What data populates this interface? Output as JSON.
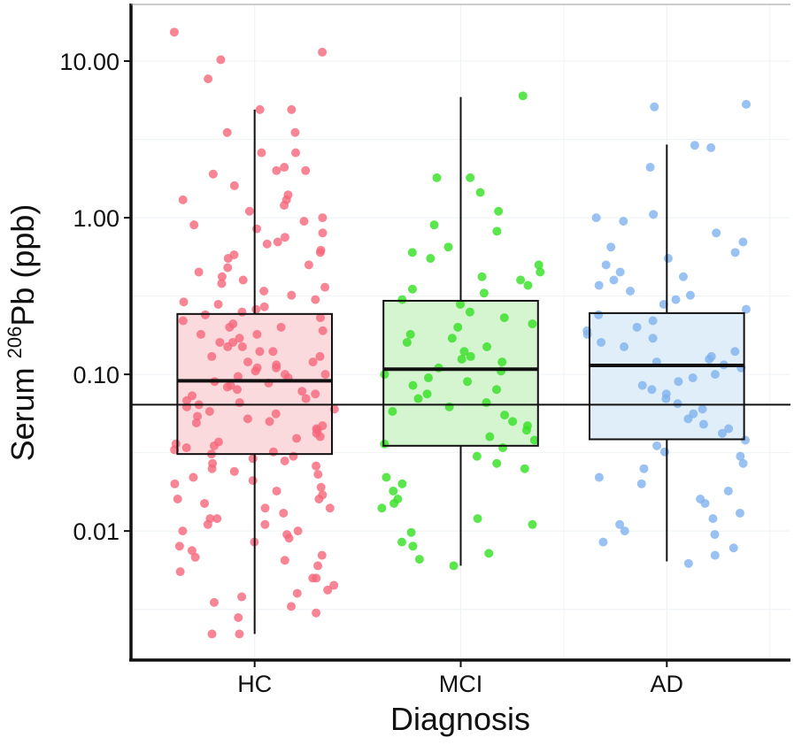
{
  "chart_data": {
    "type": "box",
    "xlabel": "Diagnosis",
    "ylabel_main": "Serum ",
    "ylabel_sup": "206",
    "ylabel_rest": "Pb (ppb)",
    "yscale": "log10",
    "ylim": [
      0.0015,
      23
    ],
    "yticks": [
      10,
      1,
      0.1,
      0.01
    ],
    "ytick_labels": [
      "10.00",
      "1.00",
      "0.10",
      "0.01"
    ],
    "categories": [
      "HC",
      "MCI",
      "AD"
    ],
    "grid": true,
    "reference_line": 0.064,
    "groups": [
      {
        "name": "HC",
        "color": "#f6667a",
        "fill": "#fadadd",
        "box": {
          "whisker_low": 0.0022,
          "q1": 0.031,
          "median": 0.091,
          "q3": 0.243,
          "whisker_high": 4.9
        },
        "points": [
          15.3,
          11.4,
          10.2,
          7.7,
          4.9,
          4.9,
          3.5,
          3.5,
          2.6,
          2.6,
          2.1,
          2.0,
          2.0,
          1.9,
          1.6,
          1.4,
          1.3,
          1.3,
          1.2,
          1.1,
          1.0,
          0.95,
          0.9,
          0.85,
          0.8,
          0.75,
          0.7,
          0.68,
          0.62,
          0.6,
          0.58,
          0.55,
          0.5,
          0.48,
          0.45,
          0.42,
          0.4,
          0.38,
          0.36,
          0.34,
          0.32,
          0.3,
          0.29,
          0.28,
          0.27,
          0.26,
          0.25,
          0.24,
          0.23,
          0.22,
          0.21,
          0.2,
          0.2,
          0.19,
          0.18,
          0.18,
          0.17,
          0.16,
          0.16,
          0.15,
          0.15,
          0.14,
          0.14,
          0.13,
          0.13,
          0.12,
          0.12,
          0.115,
          0.11,
          0.11,
          0.105,
          0.1,
          0.1,
          0.097,
          0.095,
          0.09,
          0.088,
          0.085,
          0.083,
          0.08,
          0.078,
          0.075,
          0.073,
          0.07,
          0.068,
          0.066,
          0.064,
          0.062,
          0.06,
          0.058,
          0.056,
          0.054,
          0.052,
          0.05,
          0.049,
          0.047,
          0.045,
          0.044,
          0.042,
          0.04,
          0.039,
          0.037,
          0.036,
          0.035,
          0.034,
          0.033,
          0.032,
          0.031,
          0.03,
          0.029,
          0.028,
          0.027,
          0.026,
          0.025,
          0.024,
          0.023,
          0.022,
          0.021,
          0.02,
          0.019,
          0.018,
          0.017,
          0.016,
          0.016,
          0.015,
          0.014,
          0.014,
          0.013,
          0.012,
          0.012,
          0.011,
          0.011,
          0.01,
          0.01,
          0.0095,
          0.009,
          0.0085,
          0.008,
          0.0075,
          0.007,
          0.0068,
          0.0065,
          0.006,
          0.0055,
          0.005,
          0.005,
          0.0045,
          0.0042,
          0.004,
          0.0038,
          0.0035,
          0.0033,
          0.003,
          0.0028,
          0.0022,
          0.0022
        ]
      },
      {
        "name": "MCI",
        "color": "#33e022",
        "fill": "#d4f5cf",
        "box": {
          "whisker_low": 0.006,
          "q1": 0.035,
          "median": 0.108,
          "q3": 0.295,
          "whisker_high": 5.9
        },
        "points": [
          6.0,
          1.8,
          1.8,
          1.45,
          1.1,
          0.9,
          0.82,
          0.65,
          0.6,
          0.55,
          0.5,
          0.45,
          0.42,
          0.4,
          0.37,
          0.35,
          0.33,
          0.3,
          0.28,
          0.25,
          0.23,
          0.21,
          0.2,
          0.18,
          0.17,
          0.16,
          0.15,
          0.14,
          0.13,
          0.125,
          0.12,
          0.11,
          0.105,
          0.1,
          0.095,
          0.09,
          0.085,
          0.08,
          0.075,
          0.07,
          0.066,
          0.062,
          0.058,
          0.055,
          0.05,
          0.047,
          0.044,
          0.04,
          0.038,
          0.036,
          0.034,
          0.03,
          0.027,
          0.025,
          0.022,
          0.02,
          0.018,
          0.016,
          0.015,
          0.014,
          0.012,
          0.011,
          0.0098,
          0.0085,
          0.008,
          0.0072,
          0.0066,
          0.006
        ]
      },
      {
        "name": "AD",
        "color": "#7fb1ee",
        "fill": "#e0eefa",
        "box": {
          "whisker_low": 0.0064,
          "q1": 0.0385,
          "median": 0.114,
          "q3": 0.246,
          "whisker_high": 2.93
        },
        "points": [
          5.3,
          5.1,
          2.9,
          2.8,
          2.1,
          1.05,
          1.0,
          0.95,
          0.8,
          0.7,
          0.65,
          0.6,
          0.55,
          0.5,
          0.45,
          0.42,
          0.4,
          0.37,
          0.34,
          0.32,
          0.3,
          0.28,
          0.26,
          0.24,
          0.22,
          0.2,
          0.19,
          0.18,
          0.17,
          0.16,
          0.15,
          0.14,
          0.13,
          0.125,
          0.12,
          0.115,
          0.11,
          0.1,
          0.095,
          0.09,
          0.085,
          0.08,
          0.075,
          0.07,
          0.065,
          0.06,
          0.056,
          0.052,
          0.048,
          0.045,
          0.042,
          0.038,
          0.035,
          0.032,
          0.03,
          0.027,
          0.025,
          0.022,
          0.02,
          0.018,
          0.016,
          0.015,
          0.013,
          0.012,
          0.011,
          0.01,
          0.0095,
          0.0085,
          0.0078,
          0.007,
          0.0062
        ]
      }
    ]
  }
}
